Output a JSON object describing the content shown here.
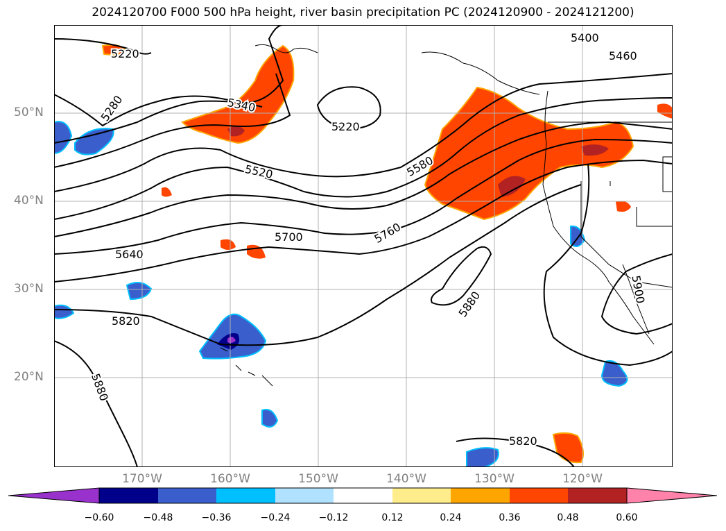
{
  "title": "2024120700 F000 500 hPa height, river basin precipitation PC (2024120900 - 2024121200)",
  "lat_labels": [
    "50°N",
    "40°N",
    "30°N",
    "20°N"
  ],
  "lon_labels": [
    "170°W",
    "160°W",
    "150°W",
    "140°W",
    "130°W",
    "120°W"
  ],
  "contour_labels": [
    "5220",
    "5280",
    "5340",
    "5220",
    "5400",
    "5460",
    "5520",
    "5580",
    "5640",
    "5700",
    "5760",
    "5820",
    "5880",
    "5880",
    "5820",
    "5900"
  ],
  "colorbar": {
    "colors": [
      "#9932cc",
      "#00008b",
      "#3a5fcd",
      "#00bfff",
      "#b0e2ff",
      "#ffffff",
      "#ffec8b",
      "#ffa500",
      "#ff4500",
      "#b22222",
      "#ff82ab"
    ],
    "tick_labels": [
      "−0.60",
      "−0.48",
      "−0.36",
      "−0.24",
      "−0.12",
      "0.12",
      "0.24",
      "0.36",
      "0.48",
      "0.60"
    ]
  }
}
